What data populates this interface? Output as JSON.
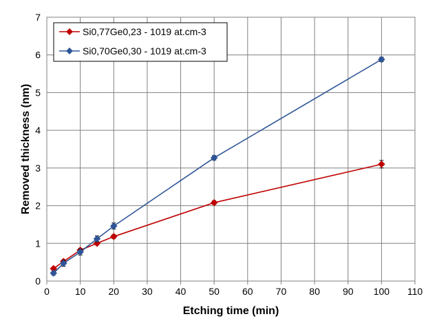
{
  "chart_data": {
    "type": "line",
    "title": "",
    "xlabel": "Etching time (min)",
    "ylabel": "Removed thickness (nm)",
    "xlim": [
      0,
      110
    ],
    "ylim": [
      0,
      7
    ],
    "xticks": [
      "0",
      "10",
      "20",
      "30",
      "40",
      "50",
      "60",
      "70",
      "80",
      "90",
      "100",
      "110"
    ],
    "yticks": [
      "0",
      "1",
      "2",
      "3",
      "4",
      "5",
      "6",
      "7"
    ],
    "grid": true,
    "legend_position": "top-left",
    "series": [
      {
        "name": "Si0,77Ge0,23 - 1019 at.cm-3",
        "color": "#C00000",
        "marker": "diamond",
        "x": [
          2,
          5,
          10,
          15,
          20,
          50,
          100
        ],
        "y": [
          0.33,
          0.52,
          0.82,
          1.0,
          1.18,
          2.08,
          3.1
        ],
        "err": [
          0.03,
          0.03,
          0.04,
          0.04,
          0.05,
          0.05,
          0.1
        ]
      },
      {
        "name": "Si0,70Ge0,30 - 1019 at.cm-3",
        "color": "#2E5597",
        "marker": "diamond",
        "x": [
          2,
          5,
          10,
          15,
          20,
          50,
          100
        ],
        "y": [
          0.21,
          0.47,
          0.77,
          1.12,
          1.46,
          3.27,
          5.88
        ],
        "err": [
          0.05,
          0.08,
          0.08,
          0.08,
          0.08,
          0.06,
          0.06
        ]
      }
    ]
  }
}
